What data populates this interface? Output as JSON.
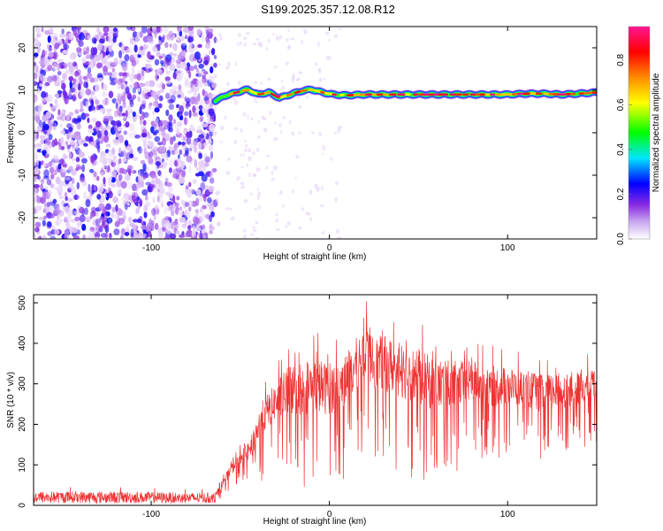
{
  "figure_title": "S199.2025.357.12.08.R12",
  "chart_data": [
    {
      "type": "heatmap",
      "title": "",
      "xlabel": "Height of straight line (km)",
      "ylabel": "Frequency (Hz)",
      "xlim": [
        -166,
        150
      ],
      "ylim": [
        -25,
        25
      ],
      "x_ticks": [
        -100,
        0,
        100
      ],
      "y_ticks": [
        -20,
        -10,
        0,
        10,
        20
      ],
      "colorbar": {
        "label": "Normalized spectral amplitude",
        "range": [
          0,
          0.95
        ],
        "ticks": [
          0,
          0.2,
          0.4,
          0.6,
          0.8
        ],
        "colormap": [
          "#ffffff",
          "#8a2be2",
          "#0000ff",
          "#00e5ff",
          "#00ff00",
          "#ffff00",
          "#ff8c00",
          "#ff0000",
          "#ff1493"
        ]
      },
      "noise_region": {
        "x_range": [
          -166,
          -64
        ],
        "y_range": [
          -25,
          25
        ],
        "amplitude_range": [
          0.02,
          0.25
        ]
      },
      "signal_track": {
        "x": [
          -64,
          -58,
          -52,
          -46,
          -40,
          -34,
          -28,
          -22,
          -16,
          -10,
          -4,
          2,
          10,
          20,
          30,
          40,
          50,
          60,
          70,
          80,
          90,
          100,
          110,
          120,
          130,
          140,
          150
        ],
        "frequency": [
          7.5,
          8.8,
          9.5,
          10.2,
          9.0,
          9.5,
          8.2,
          9.0,
          9.8,
          10.2,
          9.5,
          9.0,
          8.8,
          9.0,
          9.0,
          9.0,
          9.0,
          9.0,
          9.0,
          9.0,
          9.0,
          9.0,
          9.2,
          9.2,
          9.0,
          9.2,
          9.5
        ],
        "peak_amplitude": 0.95
      }
    },
    {
      "type": "line",
      "title": "",
      "xlabel": "Height of straight line (km)",
      "ylabel": "SNR (10 * v/v)",
      "xlim": [
        -166,
        150
      ],
      "ylim": [
        0,
        520
      ],
      "x_ticks": [
        -100,
        0,
        100
      ],
      "y_ticks": [
        0,
        100,
        200,
        300,
        400,
        500
      ],
      "series_color": "#ee3333",
      "envelope": {
        "x": [
          -166,
          -120,
          -80,
          -64,
          -57,
          -50,
          -44,
          -38,
          -30,
          -22,
          -14,
          -8,
          -2,
          4,
          10,
          16,
          20,
          25,
          30,
          40,
          50,
          60,
          70,
          80,
          90,
          100,
          110,
          120,
          130,
          140,
          150
        ],
        "max": [
          45,
          45,
          40,
          40,
          100,
          150,
          185,
          300,
          350,
          420,
          430,
          440,
          420,
          420,
          450,
          490,
          510,
          480,
          490,
          475,
          455,
          430,
          420,
          410,
          400,
          390,
          380,
          370,
          375,
          370,
          380
        ],
        "min": [
          5,
          5,
          5,
          5,
          30,
          60,
          50,
          60,
          90,
          40,
          40,
          40,
          50,
          60,
          60,
          100,
          150,
          120,
          100,
          80,
          60,
          60,
          70,
          120,
          100,
          120,
          120,
          100,
          120,
          140,
          150
        ]
      }
    }
  ]
}
